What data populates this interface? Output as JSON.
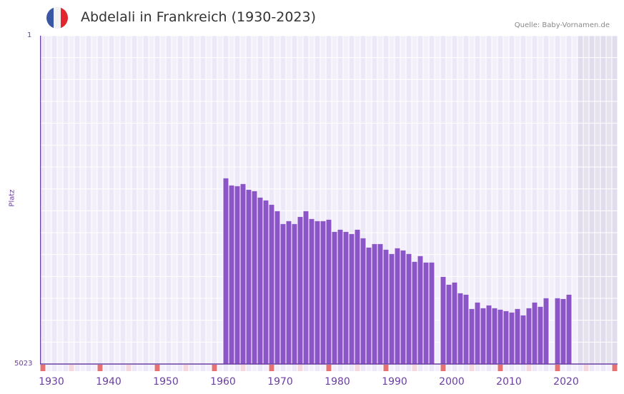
{
  "header": {
    "title": "Abdelali in Frankreich (1930-2023)",
    "source": "Quelle: Baby-Vornamen.de",
    "flag_colors": [
      "#3a57a5",
      "#f2f2f2",
      "#e1262d"
    ]
  },
  "axis": {
    "y_top": "1",
    "y_bottom": "5023",
    "y_title": "Platz",
    "x_ticks": [
      "1930",
      "1940",
      "1950",
      "1960",
      "1970",
      "1980",
      "1990",
      "2000",
      "2010",
      "2020"
    ]
  },
  "colors": {
    "bar": "#8b55c8",
    "axis": "#6b3fa0",
    "grid_a": "#f3f0fb",
    "grid_b": "#ece8f7",
    "future": "#e1dded",
    "marker_strong": "#e57373",
    "marker_light": "#f5d7dd"
  },
  "chart_data": {
    "type": "bar",
    "title": "Abdelali in Frankreich (1930-2023)",
    "xlabel": "",
    "ylabel": "Platz",
    "ylim": [
      5023,
      1
    ],
    "y_inverted": true,
    "x_range": [
      1928,
      2028
    ],
    "future_shade_from": 2022,
    "grid": true,
    "x": [
      1960,
      1961,
      1962,
      1963,
      1964,
      1965,
      1966,
      1967,
      1968,
      1969,
      1970,
      1971,
      1972,
      1973,
      1974,
      1975,
      1976,
      1977,
      1978,
      1979,
      1980,
      1981,
      1982,
      1983,
      1984,
      1985,
      1986,
      1987,
      1988,
      1989,
      1990,
      1991,
      1992,
      1993,
      1994,
      1995,
      1996,
      1998,
      1999,
      2000,
      2001,
      2002,
      2003,
      2004,
      2005,
      2006,
      2007,
      2008,
      2009,
      2010,
      2011,
      2012,
      2013,
      2014,
      2015,
      2016,
      2018,
      2019,
      2020
    ],
    "values": [
      2183,
      2292,
      2303,
      2270,
      2358,
      2379,
      2478,
      2521,
      2587,
      2685,
      2882,
      2838,
      2882,
      2773,
      2685,
      2805,
      2838,
      2838,
      2816,
      3002,
      2969,
      3002,
      3035,
      2969,
      3100,
      3242,
      3188,
      3188,
      3275,
      3340,
      3253,
      3286,
      3340,
      3460,
      3373,
      3471,
      3471,
      3690,
      3810,
      3777,
      3941,
      3963,
      4181,
      4083,
      4170,
      4127,
      4170,
      4192,
      4214,
      4236,
      4181,
      4280,
      4170,
      4083,
      4148,
      4017,
      4017,
      4028,
      3963
    ]
  }
}
